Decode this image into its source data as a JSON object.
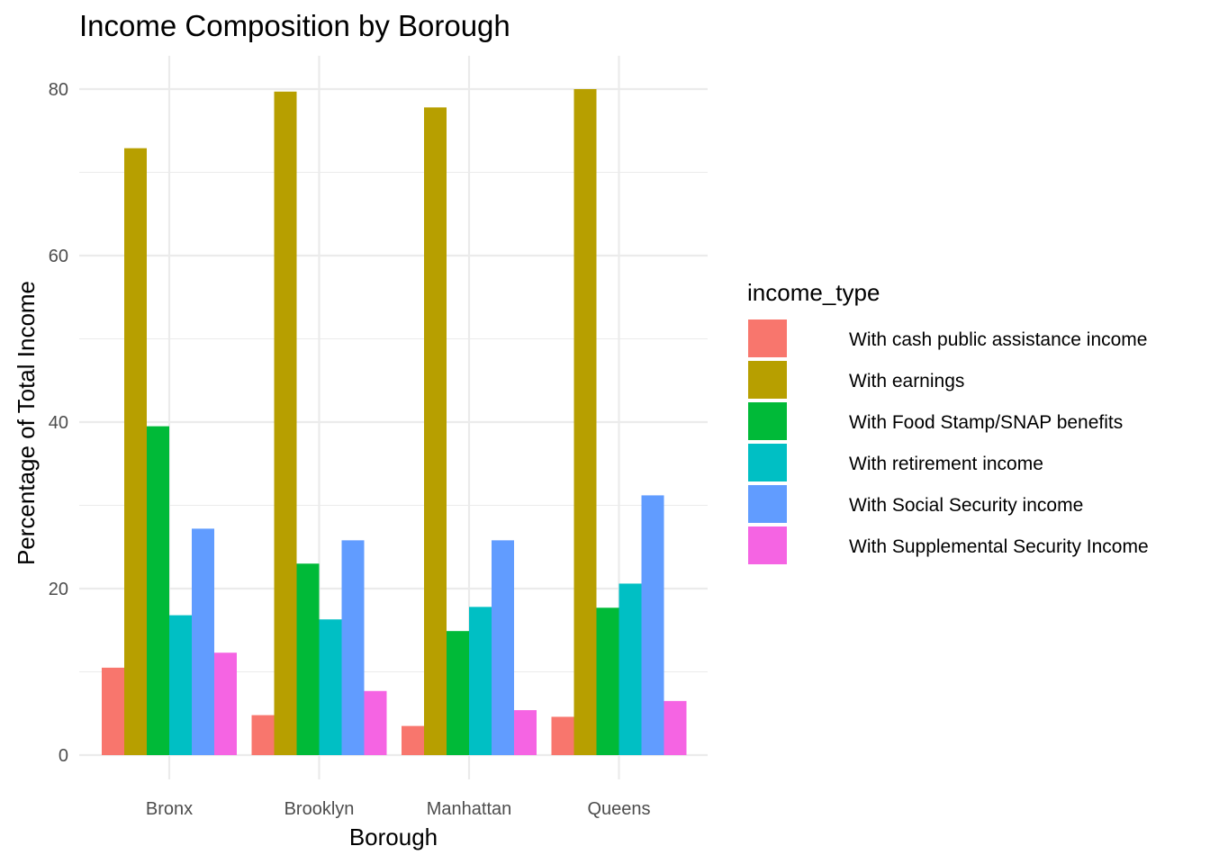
{
  "chart_data": {
    "type": "bar",
    "title": "Income Composition by Borough",
    "xlabel": "Borough",
    "ylabel": "Percentage of Total Income",
    "categories": [
      "Bronx",
      "Brooklyn",
      "Manhattan",
      "Queens"
    ],
    "ylim": [
      -3,
      84
    ],
    "yticks": [
      0,
      20,
      40,
      60,
      80
    ],
    "grid": true,
    "legend": {
      "title": "income_type",
      "position": "right"
    },
    "series": [
      {
        "name": "With cash public assistance income",
        "color": "#F8766D",
        "values": [
          10.5,
          4.8,
          3.5,
          4.6
        ]
      },
      {
        "name": "With earnings",
        "color": "#B79F00",
        "values": [
          72.9,
          79.7,
          77.8,
          80.0
        ]
      },
      {
        "name": "With Food Stamp/SNAP benefits",
        "color": "#00BA38",
        "values": [
          39.5,
          23.0,
          14.9,
          17.7
        ]
      },
      {
        "name": "With retirement income",
        "color": "#00BFC4",
        "values": [
          16.8,
          16.3,
          17.8,
          20.6
        ]
      },
      {
        "name": "With Social Security income",
        "color": "#619CFF",
        "values": [
          27.2,
          25.8,
          25.8,
          31.2
        ]
      },
      {
        "name": "With Supplemental Security Income",
        "color": "#F564E3",
        "values": [
          12.3,
          7.7,
          5.4,
          6.5
        ]
      }
    ]
  }
}
